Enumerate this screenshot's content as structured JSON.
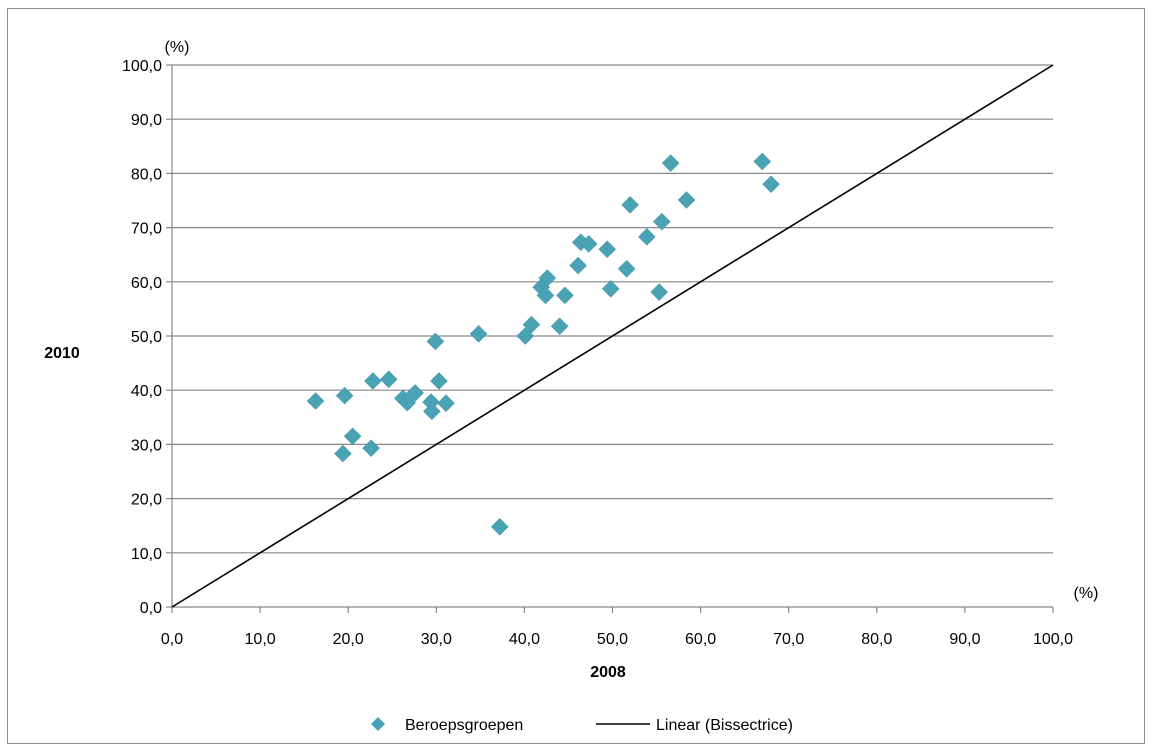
{
  "chart_data": {
    "type": "scatter",
    "xlabel": "2008",
    "ylabel": "2010",
    "x_unit": "(%)",
    "y_unit": "(%)",
    "xlim": [
      0,
      100
    ],
    "ylim": [
      0,
      100
    ],
    "x_ticks": [
      "0,0",
      "10,0",
      "20,0",
      "30,0",
      "40,0",
      "50,0",
      "60,0",
      "70,0",
      "80,0",
      "90,0",
      "100,0"
    ],
    "y_ticks": [
      "0,0",
      "10,0",
      "20,0",
      "30,0",
      "40,0",
      "50,0",
      "60,0",
      "70,0",
      "80,0",
      "90,0",
      "100,0"
    ],
    "grid": "horizontal",
    "legend_position": "bottom",
    "colors": {
      "points": "#4aa3b5",
      "line": "#000000",
      "grid": "#878787"
    },
    "series": [
      {
        "name": "Beroepsgroepen",
        "kind": "scatter",
        "points": [
          [
            16.3,
            38.0
          ],
          [
            19.4,
            28.3
          ],
          [
            19.6,
            39.0
          ],
          [
            20.5,
            31.5
          ],
          [
            22.6,
            29.3
          ],
          [
            22.8,
            41.7
          ],
          [
            24.6,
            42.0
          ],
          [
            26.2,
            38.5
          ],
          [
            26.7,
            37.7
          ],
          [
            27.6,
            39.5
          ],
          [
            29.4,
            37.8
          ],
          [
            29.5,
            36.1
          ],
          [
            29.9,
            49.0
          ],
          [
            30.3,
            41.7
          ],
          [
            31.1,
            37.6
          ],
          [
            34.8,
            50.4
          ],
          [
            37.2,
            14.8
          ],
          [
            40.1,
            50.0
          ],
          [
            40.8,
            52.1
          ],
          [
            41.9,
            59.0
          ],
          [
            42.4,
            57.5
          ],
          [
            42.6,
            60.7
          ],
          [
            44.0,
            51.8
          ],
          [
            44.6,
            57.5
          ],
          [
            46.1,
            63.0
          ],
          [
            46.4,
            67.3
          ],
          [
            47.3,
            67.0
          ],
          [
            49.4,
            66.0
          ],
          [
            49.8,
            58.7
          ],
          [
            51.6,
            62.4
          ],
          [
            52.0,
            74.2
          ],
          [
            53.9,
            68.3
          ],
          [
            55.3,
            58.1
          ],
          [
            55.6,
            71.1
          ],
          [
            56.6,
            81.9
          ],
          [
            58.4,
            75.1
          ],
          [
            67.0,
            82.2
          ],
          [
            68.0,
            78.0
          ]
        ]
      },
      {
        "name": "Linear (Bissectrice)",
        "kind": "line",
        "points": [
          [
            0,
            0
          ],
          [
            100,
            100
          ]
        ]
      }
    ]
  }
}
